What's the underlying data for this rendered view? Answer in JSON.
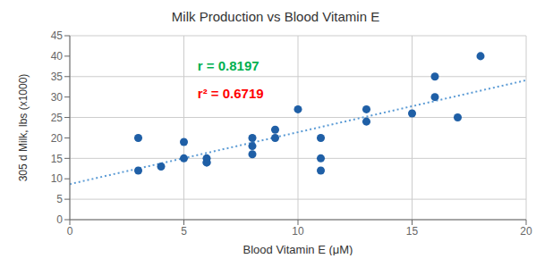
{
  "chart_data": {
    "type": "scatter",
    "title": "Milk Production vs Blood Vitamin E",
    "xlabel": "Blood Vitamin E (μM)",
    "ylabel": "305 d Milk, lbs (x1000)",
    "series": [
      {
        "type": "scatter",
        "color": "#1f5fa6",
        "x": [
          3,
          3,
          4,
          5,
          5,
          6,
          6,
          6,
          8,
          8,
          8,
          9,
          9,
          10,
          11,
          11,
          11,
          13,
          13,
          15,
          16,
          16,
          17,
          18
        ],
        "values": [
          20,
          12,
          13,
          19,
          15,
          14,
          14,
          15,
          18,
          20,
          16,
          22,
          20,
          27,
          15,
          12,
          20,
          24,
          27,
          26,
          35,
          30,
          25,
          40
        ]
      },
      {
        "type": "line",
        "color": "#5b9bd5",
        "line_style": "dotted",
        "x": [
          0,
          20
        ],
        "values": [
          8.7,
          34.1
        ]
      }
    ],
    "annotations": [
      {
        "text": "r = 0.8197",
        "color": "#00b050"
      },
      {
        "text": "r² = 0.6719",
        "color": "#ff0000"
      }
    ],
    "xlim": [
      0,
      20
    ],
    "ylim": [
      0,
      45
    ],
    "xticks": [
      0,
      5,
      10,
      15,
      20
    ],
    "yticks": [
      0,
      5,
      10,
      15,
      20,
      25,
      30,
      35,
      40,
      45
    ],
    "grid": true
  }
}
